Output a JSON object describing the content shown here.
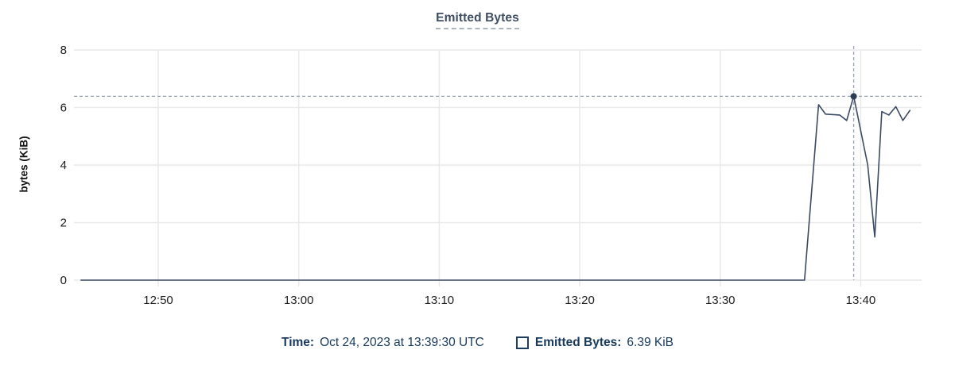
{
  "title": "Emitted Bytes",
  "legend": {
    "time_label": "Time:",
    "time_value": "Oct 24, 2023 at 13:39:30 UTC",
    "series_label": "Emitted Bytes:",
    "series_value": "6.39 KiB",
    "checkbox_icon": "unchecked-square"
  },
  "chart_data": {
    "type": "line",
    "title": "Emitted Bytes",
    "xlabel": "",
    "ylabel": "bytes (KiB)",
    "ylim": [
      0,
      8
    ],
    "yticks": [
      0,
      2,
      4,
      6,
      8
    ],
    "xticks": [
      "12:50",
      "13:00",
      "13:10",
      "13:20",
      "13:30",
      "13:40"
    ],
    "x_domain": [
      "12:44:00",
      "13:44:20"
    ],
    "grid": true,
    "legend_position": "bottom",
    "series": [
      {
        "name": "Emitted Bytes",
        "color": "#3b4a63",
        "points": [
          [
            "12:44:30",
            0
          ],
          [
            "13:36:00",
            0
          ],
          [
            "13:37:00",
            6.1
          ],
          [
            "13:37:30",
            5.77
          ],
          [
            "13:38:30",
            5.74
          ],
          [
            "13:39:00",
            5.55
          ],
          [
            "13:39:30",
            6.39
          ],
          [
            "13:40:30",
            4.0
          ],
          [
            "13:41:00",
            1.5
          ],
          [
            "13:41:30",
            5.86
          ],
          [
            "13:42:00",
            5.74
          ],
          [
            "13:42:30",
            6.03
          ],
          [
            "13:43:00",
            5.55
          ],
          [
            "13:43:30",
            5.9
          ]
        ]
      }
    ],
    "highlight_point": {
      "time": "13:39:30",
      "value": 6.39,
      "time_label": "Oct 24, 2023 at 13:39:30 UTC",
      "value_label": "6.39 KiB"
    },
    "crosshair": {
      "color": "#97a5b4",
      "style": "dashed"
    },
    "colors": {
      "grid": "#e9e9e9",
      "tick_text": "#1c1c1c",
      "title_text": "#3e4d63",
      "legend_text": "#17395c",
      "line": "#3b4a63",
      "dot": "#2c3e53"
    }
  }
}
